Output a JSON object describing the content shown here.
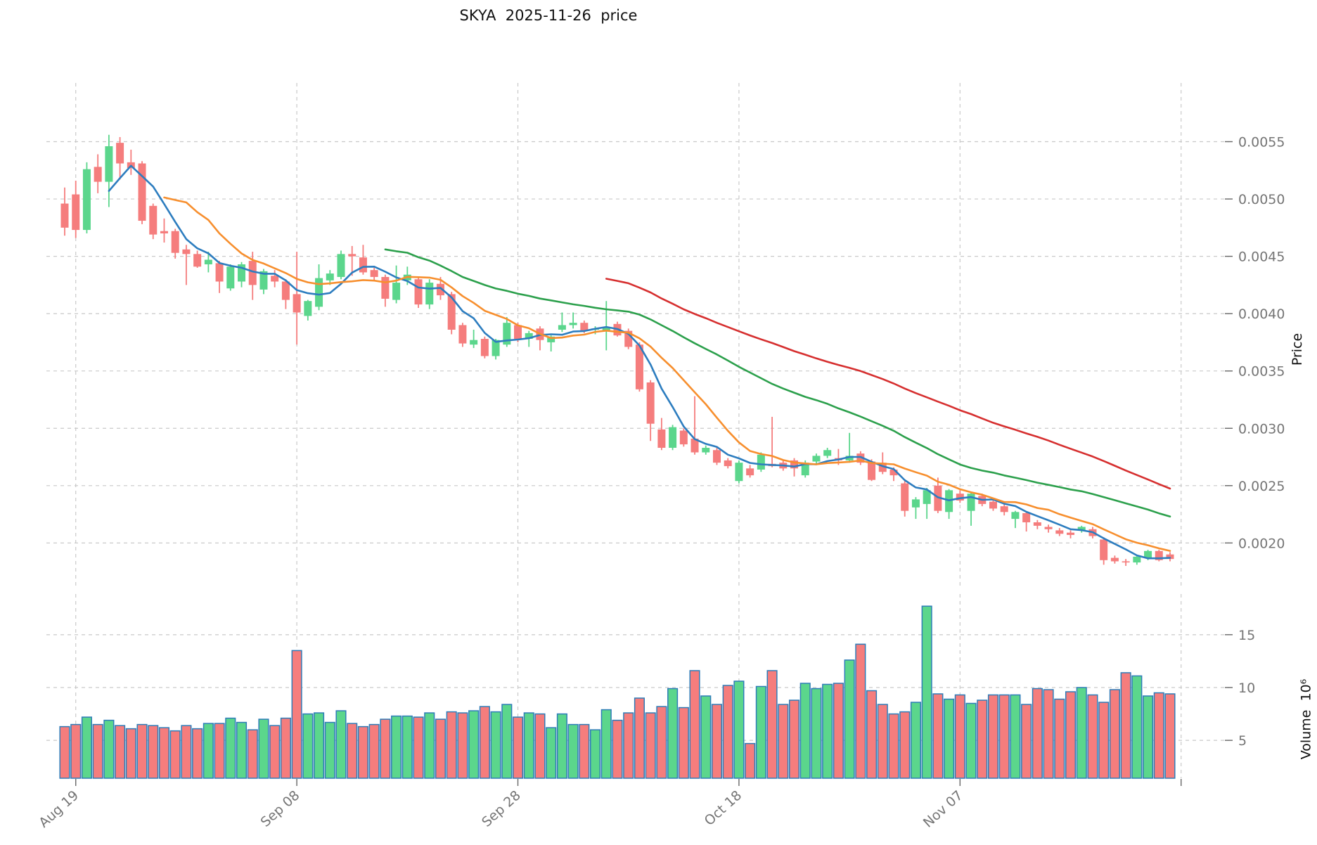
{
  "title_text": "SKYA  2025-11-26  price",
  "chart_data": {
    "type": "candlestick+volume",
    "title": "SKYA  2025-11-26  price",
    "price_axis_label": "Price",
    "volume_axis_label": "Volume  10⁶",
    "legend_position": "none",
    "grid": "dashed",
    "x_is_daily_dates": true,
    "xticks": [
      {
        "i": 1,
        "label": "Aug 19"
      },
      {
        "i": 21,
        "label": "Sep 08"
      },
      {
        "i": 41,
        "label": "Sep 28"
      },
      {
        "i": 61,
        "label": "Oct 18"
      },
      {
        "i": 81,
        "label": "Nov 07"
      },
      {
        "i": 101,
        "label": ""
      }
    ],
    "price_ticks": [
      {
        "value": 0.0055,
        "label": "0.0055"
      },
      {
        "value": 0.005,
        "label": "0.0050"
      },
      {
        "value": 0.0045,
        "label": "0.0045"
      },
      {
        "value": 0.004,
        "label": "0.0040"
      },
      {
        "value": 0.0035,
        "label": "0.0035"
      },
      {
        "value": 0.003,
        "label": "0.0030"
      },
      {
        "value": 0.0025,
        "label": "0.0025"
      },
      {
        "value": 0.002,
        "label": "0.0020"
      }
    ],
    "volume_ticks": [
      {
        "value": 15,
        "label": "15"
      },
      {
        "value": 10,
        "label": "10"
      },
      {
        "value": 5,
        "label": "5"
      }
    ],
    "price_range_shown": [
      0.002,
      0.0055
    ],
    "volume_unit": 1000000,
    "moving_averages": [
      {
        "window": 5,
        "color": "#2d7dbf"
      },
      {
        "window": 10,
        "color": "#f78f2e"
      },
      {
        "window": 30,
        "color": "#2ca04c"
      },
      {
        "window": 50,
        "color": "#d62f2f"
      }
    ],
    "colors": {
      "up": "#5bd68c",
      "down": "#f57d7d",
      "volume_edge": "#2e7cb8",
      "grid": "#c9c9c9",
      "tick_text": "#757575",
      "tick_mark": "#666666",
      "background": "#ffffff"
    },
    "ohlcv_note": "columns: open, high, low, close, volume_millions; one row per day",
    "ohlcv": [
      [
        0.00496,
        0.0051,
        0.00468,
        0.00475,
        6.3
      ],
      [
        0.00504,
        0.00516,
        0.00466,
        0.00473,
        6.5
      ],
      [
        0.00473,
        0.00532,
        0.0047,
        0.00526,
        7.2
      ],
      [
        0.00528,
        0.00539,
        0.00505,
        0.00515,
        6.5
      ],
      [
        0.00515,
        0.00556,
        0.00493,
        0.00546,
        6.9
      ],
      [
        0.00549,
        0.00554,
        0.00517,
        0.00531,
        6.4
      ],
      [
        0.00532,
        0.00543,
        0.00521,
        0.00527,
        6.1
      ],
      [
        0.00531,
        0.00533,
        0.00478,
        0.00481,
        6.5
      ],
      [
        0.00494,
        0.00496,
        0.00465,
        0.00469,
        6.4
      ],
      [
        0.00472,
        0.00483,
        0.00462,
        0.0047,
        6.2
      ],
      [
        0.00472,
        0.00474,
        0.00448,
        0.00453,
        5.9
      ],
      [
        0.00456,
        0.0046,
        0.00425,
        0.00452,
        6.4
      ],
      [
        0.00452,
        0.00455,
        0.0044,
        0.00441,
        6.1
      ],
      [
        0.00443,
        0.00454,
        0.00436,
        0.00447,
        6.6
      ],
      [
        0.00444,
        0.00446,
        0.00418,
        0.00428,
        6.6
      ],
      [
        0.00422,
        0.00443,
        0.0042,
        0.00441,
        7.1
      ],
      [
        0.00428,
        0.00445,
        0.00423,
        0.00443,
        6.7
      ],
      [
        0.00446,
        0.00454,
        0.00412,
        0.00425,
        6.0
      ],
      [
        0.00421,
        0.00439,
        0.00417,
        0.00437,
        7.0
      ],
      [
        0.00433,
        0.00438,
        0.00423,
        0.00428,
        6.4
      ],
      [
        0.00428,
        0.0043,
        0.00404,
        0.00412,
        7.1
      ],
      [
        0.00417,
        0.00454,
        0.00373,
        0.00401,
        13.5
      ],
      [
        0.00398,
        0.00412,
        0.00394,
        0.00411,
        7.5
      ],
      [
        0.00406,
        0.00443,
        0.00403,
        0.00431,
        7.6
      ],
      [
        0.00429,
        0.00438,
        0.00425,
        0.00435,
        6.7
      ],
      [
        0.00432,
        0.00455,
        0.0043,
        0.00452,
        7.8
      ],
      [
        0.00452,
        0.00459,
        0.00433,
        0.0045,
        6.6
      ],
      [
        0.00449,
        0.0046,
        0.00434,
        0.00436,
        6.3
      ],
      [
        0.00438,
        0.0044,
        0.00429,
        0.00432,
        6.5
      ],
      [
        0.00432,
        0.00434,
        0.00406,
        0.00413,
        7.0
      ],
      [
        0.00412,
        0.00442,
        0.00409,
        0.00427,
        7.3
      ],
      [
        0.00429,
        0.00441,
        0.00425,
        0.00434,
        7.3
      ],
      [
        0.0043,
        0.00432,
        0.00405,
        0.00408,
        7.2
      ],
      [
        0.00408,
        0.0043,
        0.00404,
        0.00427,
        7.6
      ],
      [
        0.00426,
        0.00432,
        0.00412,
        0.00416,
        7.0
      ],
      [
        0.00417,
        0.00419,
        0.00382,
        0.00386,
        7.7
      ],
      [
        0.0039,
        0.00392,
        0.00371,
        0.00374,
        7.6
      ],
      [
        0.00373,
        0.00386,
        0.0037,
        0.00377,
        7.8
      ],
      [
        0.00378,
        0.0038,
        0.00361,
        0.00363,
        8.2
      ],
      [
        0.00363,
        0.00378,
        0.0036,
        0.00377,
        7.7
      ],
      [
        0.00373,
        0.00397,
        0.00371,
        0.00392,
        8.4
      ],
      [
        0.0039,
        0.00392,
        0.00375,
        0.00378,
        7.2
      ],
      [
        0.00378,
        0.00385,
        0.00371,
        0.00383,
        7.6
      ],
      [
        0.00387,
        0.00389,
        0.00368,
        0.00377,
        7.5
      ],
      [
        0.00375,
        0.00381,
        0.00367,
        0.0038,
        6.2
      ],
      [
        0.00386,
        0.00401,
        0.00384,
        0.0039,
        7.5
      ],
      [
        0.0039,
        0.00401,
        0.00387,
        0.00392,
        6.5
      ],
      [
        0.00392,
        0.00394,
        0.00383,
        0.00385,
        6.5
      ],
      [
        0.00386,
        0.00389,
        0.00382,
        0.00387,
        6.0
      ],
      [
        0.00385,
        0.00411,
        0.00368,
        0.00388,
        7.9
      ],
      [
        0.00391,
        0.00393,
        0.0038,
        0.00381,
        6.9
      ],
      [
        0.00385,
        0.00387,
        0.00369,
        0.00371,
        7.6
      ],
      [
        0.00373,
        0.00375,
        0.00332,
        0.00334,
        9.0
      ],
      [
        0.0034,
        0.00342,
        0.00289,
        0.00304,
        7.6
      ],
      [
        0.00299,
        0.00309,
        0.00281,
        0.00283,
        8.2
      ],
      [
        0.00283,
        0.00303,
        0.00281,
        0.00301,
        9.9
      ],
      [
        0.00298,
        0.003,
        0.00284,
        0.00286,
        8.1
      ],
      [
        0.00291,
        0.00328,
        0.00277,
        0.00279,
        11.6
      ],
      [
        0.00279,
        0.00285,
        0.00277,
        0.00283,
        9.2
      ],
      [
        0.00281,
        0.00283,
        0.00268,
        0.0027,
        8.4
      ],
      [
        0.00272,
        0.00274,
        0.00265,
        0.00267,
        10.2
      ],
      [
        0.00254,
        0.00272,
        0.00252,
        0.0027,
        10.6
      ],
      [
        0.00265,
        0.00268,
        0.00257,
        0.00259,
        4.7
      ],
      [
        0.00264,
        0.00279,
        0.00262,
        0.00277,
        10.1
      ],
      [
        0.00269,
        0.0031,
        0.00266,
        0.00267,
        11.6
      ],
      [
        0.0027,
        0.00272,
        0.00263,
        0.00265,
        8.4
      ],
      [
        0.00272,
        0.00274,
        0.00258,
        0.00265,
        8.8
      ],
      [
        0.00259,
        0.00272,
        0.00257,
        0.0027,
        10.4
      ],
      [
        0.00271,
        0.00278,
        0.00269,
        0.00276,
        9.9
      ],
      [
        0.00276,
        0.00283,
        0.00274,
        0.00281,
        10.3
      ],
      [
        0.00274,
        0.00282,
        0.00268,
        0.00272,
        10.4
      ],
      [
        0.00272,
        0.00296,
        0.0027,
        0.00276,
        12.6
      ],
      [
        0.00278,
        0.0028,
        0.00268,
        0.0027,
        14.1
      ],
      [
        0.00271,
        0.00273,
        0.00254,
        0.00255,
        9.7
      ],
      [
        0.0027,
        0.00279,
        0.0026,
        0.00262,
        8.4
      ],
      [
        0.00264,
        0.00266,
        0.00254,
        0.00259,
        7.5
      ],
      [
        0.00252,
        0.00254,
        0.00223,
        0.00228,
        7.7
      ],
      [
        0.00231,
        0.0024,
        0.00221,
        0.00238,
        8.6
      ],
      [
        0.00234,
        0.00248,
        0.00221,
        0.00246,
        17.7
      ],
      [
        0.0025,
        0.00257,
        0.00226,
        0.00228,
        9.4
      ],
      [
        0.00227,
        0.00247,
        0.00221,
        0.00246,
        8.9
      ],
      [
        0.00243,
        0.00246,
        0.00235,
        0.00237,
        9.3
      ],
      [
        0.00228,
        0.00244,
        0.00215,
        0.00243,
        8.5
      ],
      [
        0.00241,
        0.00243,
        0.00232,
        0.00234,
        8.8
      ],
      [
        0.00236,
        0.00239,
        0.00228,
        0.0023,
        9.3
      ],
      [
        0.00232,
        0.00235,
        0.00224,
        0.00227,
        9.3
      ],
      [
        0.00221,
        0.00228,
        0.00213,
        0.00227,
        9.3
      ],
      [
        0.00226,
        0.00227,
        0.0021,
        0.00218,
        8.4
      ],
      [
        0.00218,
        0.0022,
        0.00212,
        0.00215,
        9.9
      ],
      [
        0.00214,
        0.00216,
        0.00209,
        0.00212,
        9.8
      ],
      [
        0.00211,
        0.00213,
        0.00206,
        0.00208,
        8.9
      ],
      [
        0.00209,
        0.00211,
        0.00204,
        0.00207,
        9.6
      ],
      [
        0.00211,
        0.00215,
        0.00209,
        0.00214,
        10.0
      ],
      [
        0.00212,
        0.00214,
        0.00204,
        0.00206,
        9.3
      ],
      [
        0.00203,
        0.00205,
        0.00181,
        0.00185,
        8.6
      ],
      [
        0.00187,
        0.00189,
        0.00182,
        0.00184,
        9.8
      ],
      [
        0.00184,
        0.00186,
        0.0018,
        0.00183,
        11.4
      ],
      [
        0.00183,
        0.00189,
        0.00181,
        0.00188,
        11.1
      ],
      [
        0.00187,
        0.00194,
        0.00185,
        0.00193,
        9.2
      ],
      [
        0.00193,
        0.00194,
        0.00184,
        0.00185,
        9.5
      ],
      [
        0.0019,
        0.00192,
        0.00184,
        0.00186,
        9.4
      ]
    ]
  }
}
